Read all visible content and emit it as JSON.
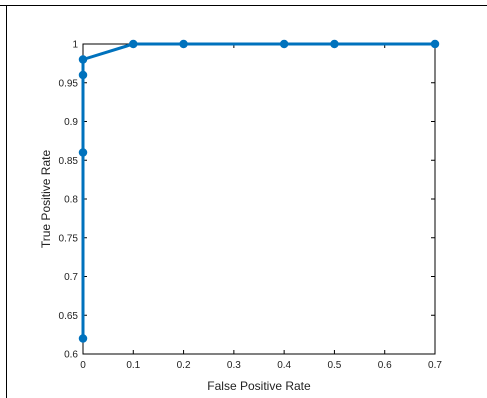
{
  "chart_data": {
    "type": "line",
    "title": "",
    "xlabel": "False Positive Rate",
    "ylabel": "True Positive Rate",
    "xlim": [
      0,
      0.7
    ],
    "ylim": [
      0.6,
      1
    ],
    "xticks": [
      0,
      0.1,
      0.2,
      0.3,
      0.4,
      0.5,
      0.6,
      0.7
    ],
    "yticks": [
      0.6,
      0.65,
      0.7,
      0.75,
      0.8,
      0.85,
      0.9,
      0.95,
      1
    ],
    "xtick_labels": [
      "0",
      "0.1",
      "0.2",
      "0.3",
      "0.4",
      "0.5",
      "0.6",
      "0.7"
    ],
    "ytick_labels": [
      "0.6",
      "0.65",
      "0.7",
      "0.75",
      "0.8",
      "0.85",
      "0.9",
      "0.95",
      "1"
    ],
    "grid": false,
    "legend": "none",
    "series": [
      {
        "color": "#0072BD",
        "x": [
          0,
          0,
          0,
          0,
          0.1,
          0.2,
          0.4,
          0.5,
          0.7
        ],
        "y": [
          0.62,
          0.86,
          0.96,
          0.98,
          1,
          1,
          1,
          1,
          1
        ]
      }
    ]
  }
}
